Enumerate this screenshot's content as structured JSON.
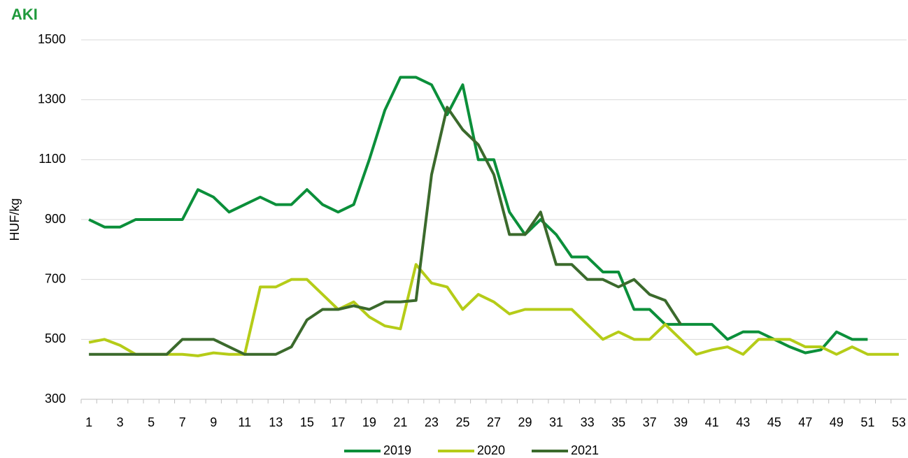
{
  "logo": "AKI",
  "chart_data": {
    "type": "line",
    "ylabel": "HUF/kg",
    "categories": [
      1,
      null,
      3,
      null,
      5,
      null,
      7,
      null,
      9,
      null,
      11,
      null,
      13,
      null,
      15,
      null,
      17,
      null,
      19,
      null,
      21,
      null,
      23,
      null,
      25,
      null,
      27,
      null,
      29,
      null,
      31,
      null,
      33,
      null,
      35,
      null,
      37,
      null,
      39,
      null,
      41,
      null,
      43,
      null,
      45,
      null,
      47,
      null,
      49,
      null,
      51,
      null,
      53
    ],
    "ylim": [
      300,
      1500
    ],
    "yticks": [
      300,
      500,
      700,
      900,
      1100,
      1300,
      1500
    ],
    "grid": true,
    "legend": "bottom",
    "series": [
      {
        "name": "2019",
        "color": "#0b8f3a",
        "values": [
          900,
          875,
          875,
          900,
          900,
          900,
          900,
          1000,
          975,
          925,
          950,
          975,
          950,
          950,
          1000,
          950,
          925,
          950,
          1100,
          1265,
          1375,
          1375,
          1350,
          1250,
          1350,
          1100,
          1100,
          925,
          850,
          900,
          850,
          775,
          775,
          725,
          725,
          600,
          600,
          550,
          550,
          550,
          550,
          500,
          525,
          525,
          500,
          475,
          455,
          465,
          525,
          500,
          500,
          null,
          null
        ]
      },
      {
        "name": "2020",
        "color": "#b5cc18",
        "values": [
          490,
          500,
          480,
          450,
          450,
          450,
          450,
          445,
          455,
          450,
          450,
          675,
          675,
          700,
          700,
          650,
          600,
          625,
          575,
          545,
          535,
          750,
          688,
          675,
          600,
          650,
          625,
          585,
          600,
          600,
          600,
          600,
          550,
          500,
          525,
          500,
          500,
          550,
          500,
          450,
          465,
          475,
          450,
          500,
          500,
          500,
          475,
          475,
          450,
          475,
          450,
          450,
          450
        ]
      },
      {
        "name": "2021",
        "color": "#3b6a2c",
        "values": [
          450,
          450,
          450,
          450,
          450,
          450,
          500,
          500,
          500,
          475,
          450,
          450,
          450,
          475,
          565,
          600,
          600,
          612,
          600,
          625,
          625,
          630,
          1050,
          1275,
          1200,
          1150,
          1050,
          850,
          850,
          925,
          750,
          750,
          700,
          700,
          675,
          700,
          650,
          630,
          550,
          null,
          null,
          null,
          null,
          null,
          null,
          null,
          null,
          null,
          null,
          null,
          null,
          null,
          null
        ]
      }
    ]
  }
}
